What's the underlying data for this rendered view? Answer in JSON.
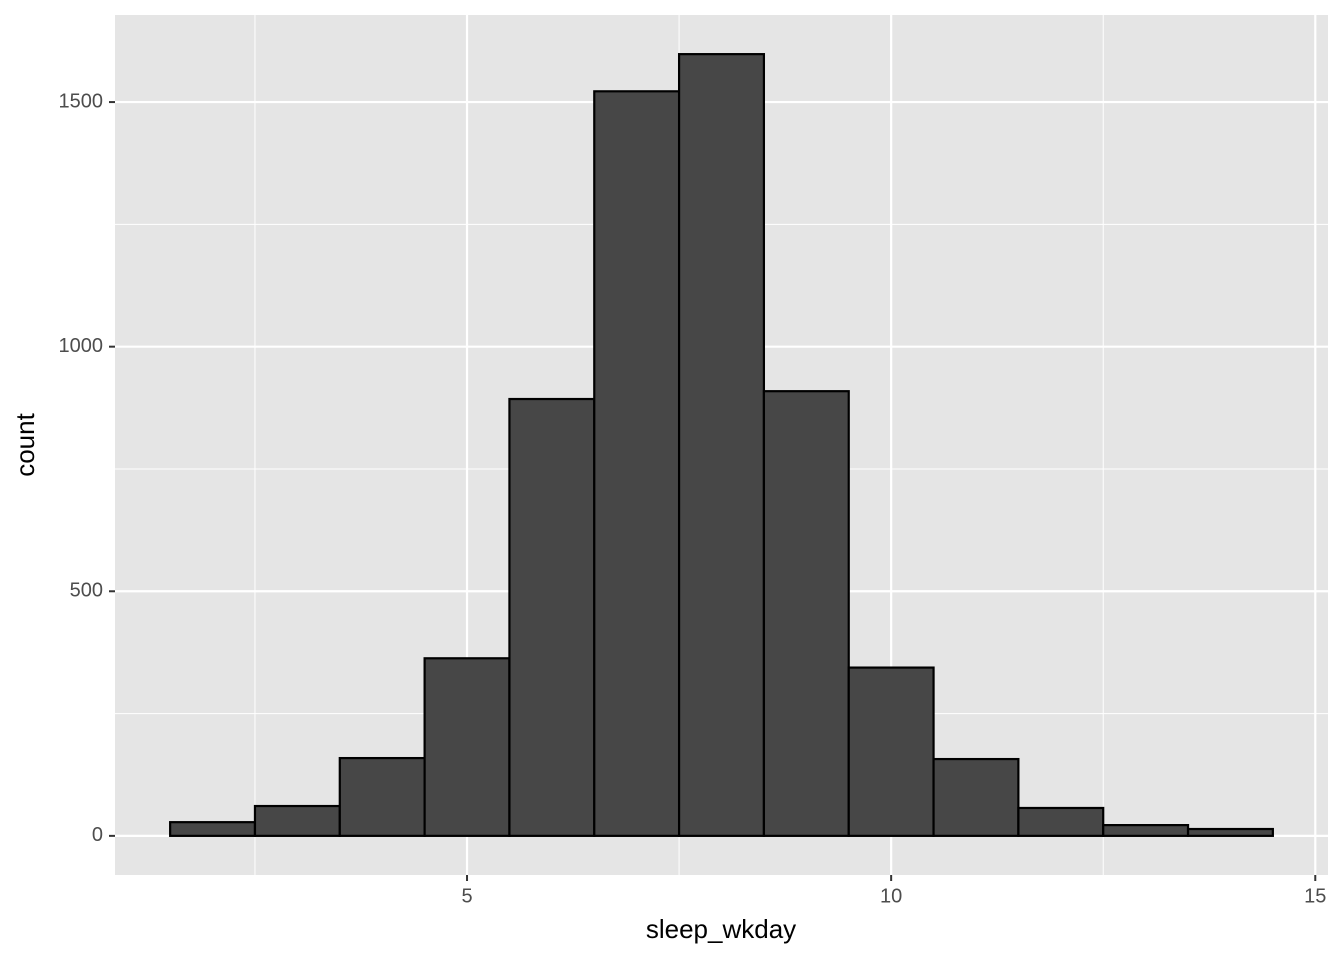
{
  "chart_data": {
    "type": "histogram",
    "x_label": "sleep_wkday",
    "y_label": "count",
    "bins": [
      1.5,
      2.5,
      3.5,
      4.5,
      5.5,
      6.5,
      7.5,
      8.5,
      9.5,
      10.5,
      11.5,
      12.5,
      13.5,
      14.5
    ],
    "values": [
      28,
      61,
      159,
      363,
      893,
      1522,
      1598,
      909,
      344,
      157,
      57,
      22,
      14
    ],
    "color": "#474747",
    "edge_color": "#000000",
    "xlim": [
      0.85,
      15.15
    ],
    "xticks": [
      5,
      10,
      15
    ],
    "x_minor_grid": [
      2.5,
      7.5,
      12.5
    ],
    "ylim": [
      -80,
      1678
    ],
    "yticks": [
      0,
      500,
      1000,
      1500
    ],
    "y_minor_grid": [
      250,
      750,
      1250
    ],
    "grid": true,
    "panel_color": "#e5e5e5"
  }
}
